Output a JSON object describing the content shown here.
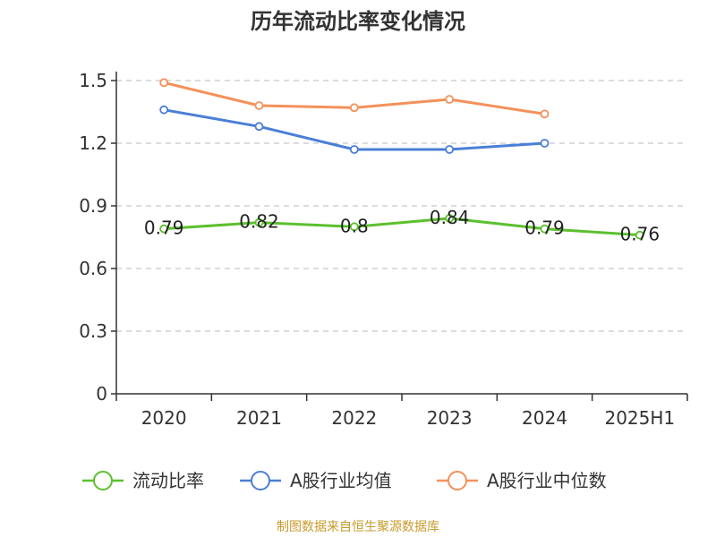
{
  "chart_data": {
    "type": "line",
    "title": "历年流动比率变化情况",
    "categories": [
      "2020",
      "2021",
      "2022",
      "2023",
      "2024",
      "2025H1"
    ],
    "ylim": [
      0,
      1.5
    ],
    "yticks": [
      "0",
      "0.3",
      "0.6",
      "0.9",
      "1.2",
      "1.5"
    ],
    "grid": true,
    "legend_position": "bottom",
    "series": [
      {
        "name": "流动比率",
        "color": "#5cc02e",
        "values": [
          0.79,
          0.82,
          0.8,
          0.84,
          0.79,
          0.76
        ],
        "labels": [
          "0.79",
          "0.82",
          "0.8",
          "0.84",
          "0.79",
          "0.76"
        ]
      },
      {
        "name": "A股行业均值",
        "color": "#4a7fd6",
        "values": [
          1.36,
          1.28,
          1.17,
          1.17,
          1.2,
          null
        ]
      },
      {
        "name": "A股行业中位数",
        "color": "#f4915a",
        "values": [
          1.49,
          1.38,
          1.37,
          1.41,
          1.34,
          null
        ]
      }
    ]
  },
  "source_text": "制图数据来自恒生聚源数据库"
}
